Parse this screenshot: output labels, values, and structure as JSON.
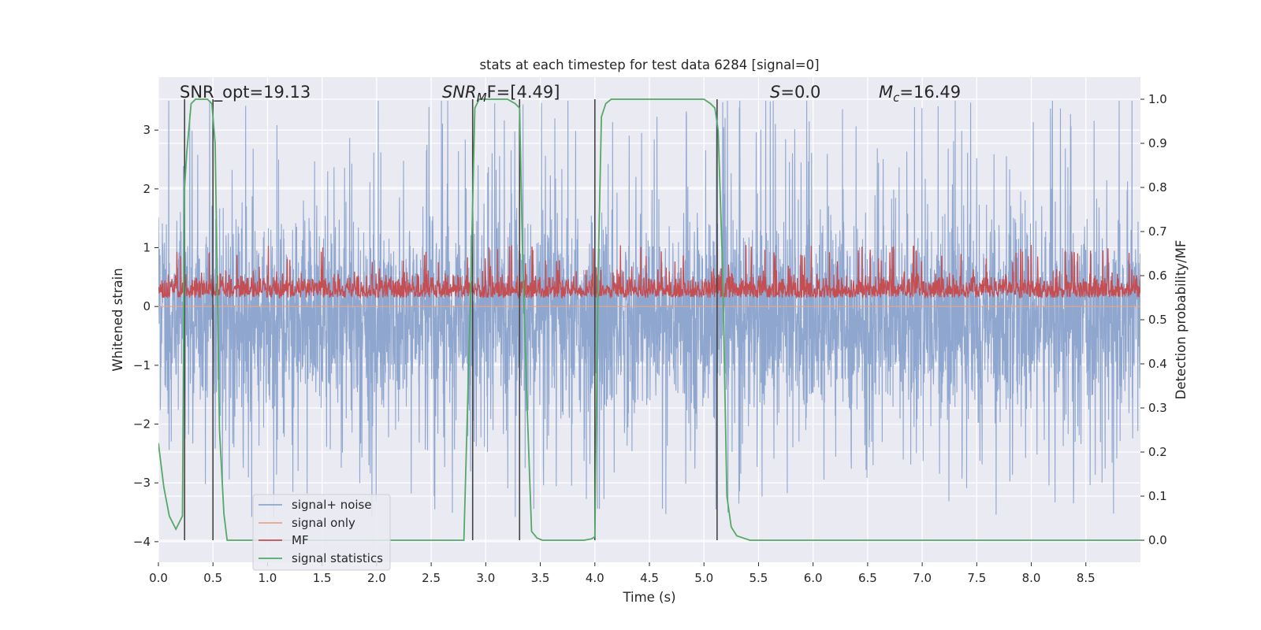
{
  "chart_data": {
    "type": "line",
    "title": "stats at each timestep for test data 6284 [signal=0]",
    "xlabel": "Time (s)",
    "ylabel": "Whitened strain",
    "y2label": "Detection probability/MF",
    "xlim": [
      0.0,
      9.0
    ],
    "ylim": [
      -4.35,
      3.9
    ],
    "y2lim": [
      -0.05,
      1.05
    ],
    "x_ticks": [
      "0.0",
      "0.5",
      "1.0",
      "1.5",
      "2.0",
      "2.5",
      "3.0",
      "3.5",
      "4.0",
      "4.5",
      "5.0",
      "5.5",
      "6.0",
      "6.5",
      "7.0",
      "7.5",
      "8.0",
      "8.5"
    ],
    "y_ticks": [
      "3",
      "2",
      "1",
      "0",
      "−1",
      "−2",
      "−3",
      "−4"
    ],
    "y2_ticks": [
      "1.0",
      "0.9",
      "0.8",
      "0.7",
      "0.6",
      "0.5",
      "0.4",
      "0.3",
      "0.2",
      "0.1",
      "0.0"
    ],
    "grid": true,
    "legend_position": "lower-left",
    "annotations": {
      "snr_opt": "SNR_opt=19.13",
      "snr_mf_sym": "SNR",
      "snr_mf_sub": "M",
      "snr_mf_rest": "F=[4.49]",
      "s_sym": "S",
      "s_rest": "=0.0",
      "mc_sym": "M",
      "mc_sub": "c",
      "mc_rest": "=16.49"
    },
    "vertical_markers_x": [
      0.24,
      0.5,
      2.88,
      3.31,
      4.0,
      5.12
    ],
    "series": [
      {
        "name": "signal+ noise",
        "color": "#8fa6cf",
        "kind": "noise",
        "envelope_typical": [
          -1.9,
          1.5
        ],
        "envelope_peaks": [
          -4.0,
          3.5
        ]
      },
      {
        "name": "signal only",
        "color": "#e8a489",
        "kind": "flat",
        "value": 0.0
      },
      {
        "name": "MF",
        "color": "#c44e52",
        "axis": "right",
        "kind": "noise",
        "baseline": 0.56,
        "envelope_typical": [
          0.54,
          0.63
        ],
        "envelope_peaks": [
          0.535,
          0.69
        ]
      },
      {
        "name": "signal statistics",
        "color": "#55a868",
        "axis": "right",
        "kind": "line",
        "x": [
          0.0,
          0.05,
          0.1,
          0.16,
          0.22,
          0.24,
          0.26,
          0.3,
          0.34,
          0.4,
          0.45,
          0.49,
          0.5,
          0.52,
          0.56,
          0.6,
          0.63,
          0.7,
          1.0,
          2.0,
          2.5,
          2.75,
          2.8,
          2.86,
          2.9,
          2.94,
          3.0,
          3.2,
          3.27,
          3.31,
          3.34,
          3.38,
          3.42,
          3.47,
          3.52,
          3.6,
          3.9,
          3.97,
          4.0,
          4.03,
          4.06,
          4.1,
          4.15,
          4.2,
          4.4,
          4.8,
          5.0,
          5.06,
          5.1,
          5.13,
          5.17,
          5.21,
          5.25,
          5.3,
          5.36,
          5.42,
          5.5,
          6.0,
          7.0,
          8.0,
          9.0
        ],
        "values": [
          0.22,
          0.12,
          0.055,
          0.025,
          0.055,
          0.8,
          0.88,
          0.99,
          1.0,
          1.0,
          1.0,
          0.99,
          0.96,
          0.9,
          0.25,
          0.06,
          0.0,
          0.0,
          0.0,
          0.0,
          0.0,
          0.0,
          0.0,
          0.55,
          0.98,
          1.0,
          1.0,
          1.0,
          0.99,
          0.98,
          0.62,
          0.3,
          0.02,
          0.005,
          0.0,
          0.0,
          0.0,
          0.003,
          0.008,
          0.6,
          0.96,
          0.99,
          1.0,
          1.0,
          1.0,
          1.0,
          1.0,
          0.99,
          0.98,
          0.93,
          0.62,
          0.1,
          0.03,
          0.01,
          0.005,
          0.0,
          0.0,
          0.0,
          0.0,
          0.0,
          0.0
        ]
      }
    ]
  },
  "colors": {
    "axes_bg": "#eaeaf2",
    "grid": "#ffffff",
    "marker": "#444444",
    "text": "#262626"
  }
}
